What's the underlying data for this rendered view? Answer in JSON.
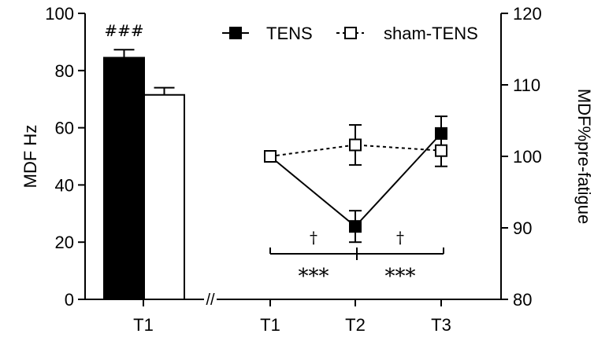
{
  "chart_data": [
    {
      "type": "bar",
      "ylabel": "MDF Hz",
      "ylim": [
        0,
        100
      ],
      "yticks": [
        "0",
        "20",
        "40",
        "60",
        "80",
        "100"
      ],
      "categories": [
        "T1"
      ],
      "series": [
        {
          "name": "TENS",
          "values": [
            84.5
          ],
          "error": [
            2.8
          ],
          "fill": "#000000"
        },
        {
          "name": "sham-TENS",
          "values": [
            71.5
          ],
          "error": [
            2.5
          ],
          "fill": "#ffffff"
        }
      ],
      "annotations": [
        {
          "text": "###",
          "category": "T1",
          "series": "TENS"
        }
      ]
    },
    {
      "type": "line",
      "ylabel": "MDF%pre-fatigue",
      "ylim": [
        80,
        120
      ],
      "yticks": [
        "80",
        "90",
        "100",
        "110",
        "120"
      ],
      "x": [
        "T1",
        "T2",
        "T3"
      ],
      "series": [
        {
          "name": "TENS",
          "values": [
            100,
            90.2,
            103.2
          ],
          "error": [
            0,
            2.2,
            2.4
          ],
          "marker": "filled-square",
          "line": "solid"
        },
        {
          "name": "sham-TENS",
          "values": [
            100,
            101.6,
            100.8
          ],
          "error": [
            0,
            2.8,
            2.2
          ],
          "marker": "open-square",
          "line": "dashed"
        }
      ],
      "legend": "top-right",
      "annotations": [
        {
          "text": "†",
          "between": [
            "T1",
            "T2"
          ]
        },
        {
          "text": "†",
          "between": [
            "T2",
            "T3"
          ]
        },
        {
          "text": "***",
          "between": [
            "T1",
            "T2"
          ]
        },
        {
          "text": "***",
          "between": [
            "T2",
            "T3"
          ]
        }
      ],
      "axis_break": "//"
    }
  ]
}
